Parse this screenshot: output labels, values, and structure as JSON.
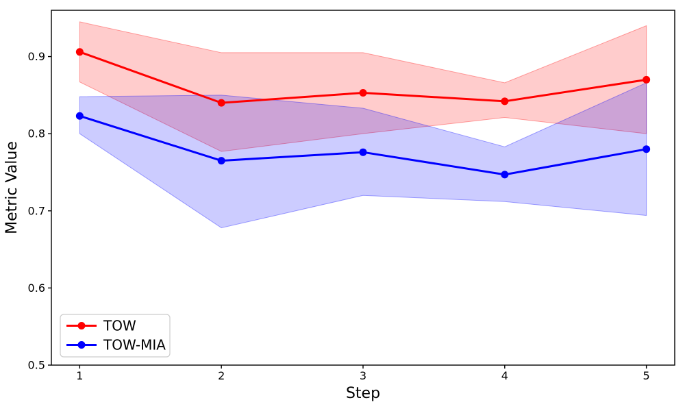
{
  "figure": {
    "background": "#ffffff",
    "plot_background": "#ffffff",
    "spine_color": "#000000"
  },
  "chart_data": {
    "type": "line",
    "title": "",
    "xlabel": "Step",
    "ylabel": "Metric Value",
    "x": [
      1,
      2,
      3,
      4,
      5
    ],
    "xticks": [
      "1",
      "2",
      "3",
      "4",
      "5"
    ],
    "yticks": [
      "0.5",
      "0.6",
      "0.7",
      "0.8",
      "0.9"
    ],
    "ytick_values": [
      0.5,
      0.6,
      0.7,
      0.8,
      0.9
    ],
    "xlim": [
      0.8,
      5.2
    ],
    "ylim": [
      0.5,
      0.96
    ],
    "grid": false,
    "legend": {
      "position": "lower-left",
      "border_color": "#cccccc",
      "background": "#ffffff"
    },
    "series": [
      {
        "name": "TOW",
        "color": "#ff0000",
        "marker": "circle",
        "values": [
          0.906,
          0.84,
          0.853,
          0.842,
          0.87
        ],
        "band_upper": [
          0.945,
          0.905,
          0.905,
          0.866,
          0.94
        ],
        "band_lower": [
          0.867,
          0.777,
          0.8,
          0.821,
          0.8
        ],
        "band_opacity": 0.2
      },
      {
        "name": "TOW-MIA",
        "color": "#0000ff",
        "marker": "circle",
        "values": [
          0.823,
          0.765,
          0.776,
          0.747,
          0.78
        ],
        "band_upper": [
          0.848,
          0.85,
          0.833,
          0.783,
          0.866
        ],
        "band_lower": [
          0.8,
          0.678,
          0.72,
          0.712,
          0.694
        ],
        "band_opacity": 0.2
      }
    ]
  }
}
